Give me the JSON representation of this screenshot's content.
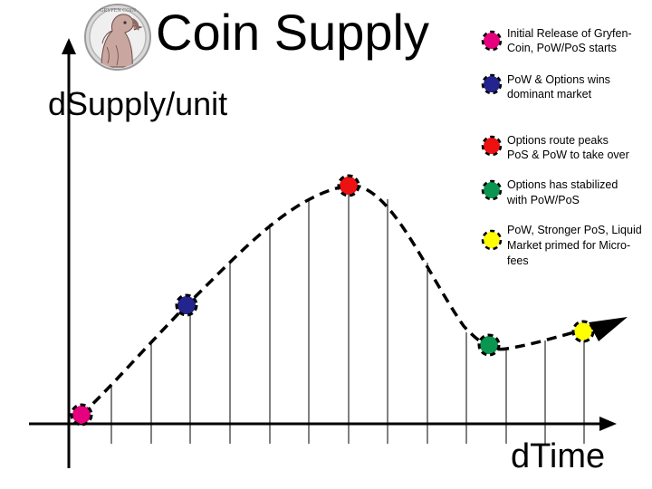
{
  "title": "Coin Supply",
  "axes": {
    "ylabel": "dSupply/unit",
    "xlabel": "dTime"
  },
  "logo": {
    "icon": "coin-logo-icon",
    "text": "GRYFEN COIN"
  },
  "milestones": [
    {
      "id": "initial-release",
      "color": "#e6007e",
      "lines": [
        "Initial Release of Gryfen-",
        "Coin, PoW/PoS starts"
      ]
    },
    {
      "id": "pow-options",
      "color": "#24248f",
      "lines": [
        "PoW & Options wins",
        "dominant market"
      ]
    },
    {
      "id": "options-peak",
      "color": "#ee1111",
      "lines": [
        "Options route peaks",
        "PoS & PoW to take over"
      ]
    },
    {
      "id": "options-stabilized",
      "color": "#0a9650",
      "lines": [
        "Options has stabilized",
        "with PoW/PoS"
      ]
    },
    {
      "id": "stronger-pos",
      "color": "#ffff00",
      "lines": [
        "PoW, Stronger PoS, Liquid",
        "Market primed for Micro-",
        "fees"
      ]
    }
  ],
  "colors": {
    "axis": "#000000",
    "curve": "#000000",
    "marker_ring": "#000000"
  }
}
